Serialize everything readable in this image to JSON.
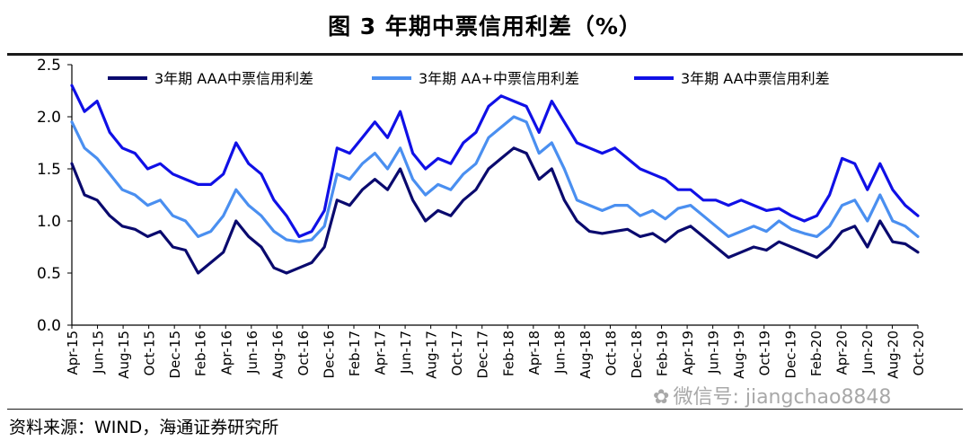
{
  "title": "图  3 年期中票信用利差（%）",
  "source": "资料来源：WIND，海通证券研究所",
  "watermark": "微信号: jiangchao8848",
  "colors": {
    "AAA": "#0a0a6e",
    "AA_plus": "#4a8ff0",
    "AA": "#1010e6",
    "axis": "#000000"
  },
  "chart_data": {
    "type": "line",
    "ylim": [
      0.0,
      2.5
    ],
    "yticks": [
      "0.0",
      "0.5",
      "1.0",
      "1.5",
      "2.0",
      "2.5"
    ],
    "xticks": [
      "Apr-15",
      "Jun-15",
      "Aug-15",
      "Oct-15",
      "Dec-15",
      "Feb-16",
      "Apr-16",
      "Jun-16",
      "Aug-16",
      "Oct-16",
      "Dec-16",
      "Feb-17",
      "Apr-17",
      "Jun-17",
      "Aug-17",
      "Oct-17",
      "Dec-17",
      "Feb-18",
      "Apr-18",
      "Jun-18",
      "Aug-18",
      "Oct-18",
      "Dec-18",
      "Feb-19",
      "Apr-19",
      "Jun-19",
      "Aug-19",
      "Oct-19",
      "Dec-19",
      "Feb-20",
      "Apr-20",
      "Jun-20",
      "Aug-20",
      "Oct-20"
    ],
    "x": [
      "2015-04",
      "2015-05",
      "2015-06",
      "2015-07",
      "2015-08",
      "2015-09",
      "2015-10",
      "2015-11",
      "2015-12",
      "2016-01",
      "2016-02",
      "2016-03",
      "2016-04",
      "2016-05",
      "2016-06",
      "2016-07",
      "2016-08",
      "2016-09",
      "2016-10",
      "2016-11",
      "2016-12",
      "2017-01",
      "2017-02",
      "2017-03",
      "2017-04",
      "2017-05",
      "2017-06",
      "2017-07",
      "2017-08",
      "2017-09",
      "2017-10",
      "2017-11",
      "2017-12",
      "2018-01",
      "2018-02",
      "2018-03",
      "2018-04",
      "2018-05",
      "2018-06",
      "2018-07",
      "2018-08",
      "2018-09",
      "2018-10",
      "2018-11",
      "2018-12",
      "2019-01",
      "2019-02",
      "2019-03",
      "2019-04",
      "2019-05",
      "2019-06",
      "2019-07",
      "2019-08",
      "2019-09",
      "2019-10",
      "2019-11",
      "2019-12",
      "2020-01",
      "2020-02",
      "2020-03",
      "2020-04",
      "2020-05",
      "2020-06",
      "2020-07",
      "2020-08",
      "2020-09",
      "2020-10",
      "2020-11"
    ],
    "series": [
      {
        "name": "3年期 AAA中票信用利差",
        "color_key": "AAA",
        "values": [
          1.55,
          1.25,
          1.2,
          1.05,
          0.95,
          0.92,
          0.85,
          0.9,
          0.75,
          0.72,
          0.5,
          0.6,
          0.7,
          1.0,
          0.85,
          0.75,
          0.55,
          0.5,
          0.55,
          0.6,
          0.75,
          1.2,
          1.15,
          1.3,
          1.4,
          1.3,
          1.5,
          1.2,
          1.0,
          1.1,
          1.05,
          1.2,
          1.3,
          1.5,
          1.6,
          1.7,
          1.65,
          1.4,
          1.5,
          1.2,
          1.0,
          0.9,
          0.88,
          0.9,
          0.92,
          0.85,
          0.88,
          0.8,
          0.9,
          0.95,
          0.85,
          0.75,
          0.65,
          0.7,
          0.75,
          0.72,
          0.8,
          0.75,
          0.7,
          0.65,
          0.75,
          0.9,
          0.95,
          0.75,
          1.0,
          0.8,
          0.78,
          0.7
        ]
      },
      {
        "name": "3年期 AA+中票信用利差",
        "color_key": "AA_plus",
        "values": [
          1.95,
          1.7,
          1.6,
          1.45,
          1.3,
          1.25,
          1.15,
          1.2,
          1.05,
          1.0,
          0.85,
          0.9,
          1.05,
          1.3,
          1.15,
          1.05,
          0.9,
          0.82,
          0.8,
          0.82,
          0.95,
          1.45,
          1.4,
          1.55,
          1.65,
          1.5,
          1.7,
          1.4,
          1.25,
          1.35,
          1.3,
          1.45,
          1.55,
          1.8,
          1.9,
          2.0,
          1.95,
          1.65,
          1.75,
          1.5,
          1.2,
          1.15,
          1.1,
          1.15,
          1.15,
          1.05,
          1.1,
          1.02,
          1.12,
          1.15,
          1.05,
          0.95,
          0.85,
          0.9,
          0.95,
          0.9,
          1.0,
          0.92,
          0.88,
          0.85,
          0.95,
          1.15,
          1.2,
          1.0,
          1.25,
          1.0,
          0.95,
          0.85
        ]
      },
      {
        "name": "3年期 AA中票信用利差",
        "color_key": "AA",
        "values": [
          2.3,
          2.05,
          2.15,
          1.85,
          1.7,
          1.65,
          1.5,
          1.55,
          1.45,
          1.4,
          1.35,
          1.35,
          1.45,
          1.75,
          1.55,
          1.45,
          1.2,
          1.05,
          0.85,
          0.9,
          1.1,
          1.7,
          1.65,
          1.8,
          1.95,
          1.8,
          2.05,
          1.65,
          1.5,
          1.6,
          1.55,
          1.75,
          1.85,
          2.1,
          2.2,
          2.15,
          2.1,
          1.85,
          2.15,
          1.95,
          1.75,
          1.7,
          1.65,
          1.7,
          1.6,
          1.5,
          1.45,
          1.4,
          1.3,
          1.3,
          1.2,
          1.2,
          1.15,
          1.2,
          1.15,
          1.1,
          1.12,
          1.05,
          1.0,
          1.05,
          1.25,
          1.6,
          1.55,
          1.3,
          1.55,
          1.3,
          1.15,
          1.05
        ]
      }
    ],
    "legend": "top"
  }
}
